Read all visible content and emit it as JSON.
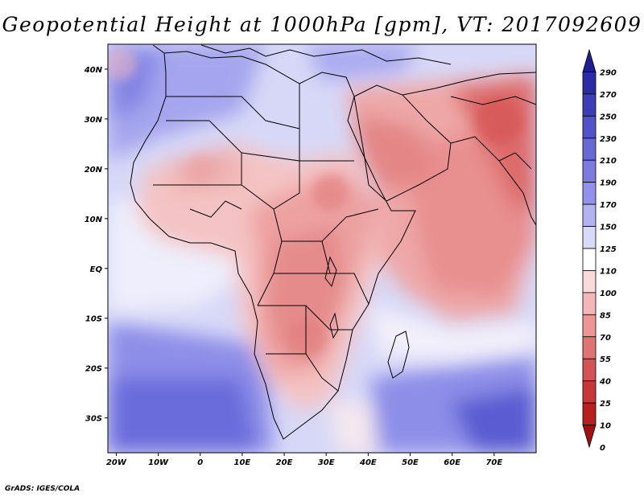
{
  "title": "Geopotential Height at 1000hPa [gpm], VT: 2017092609",
  "credit": "GrADS: IGES/COLA",
  "map": {
    "lon_range": [
      -22,
      80
    ],
    "lat_range": [
      -37,
      45
    ],
    "lon_ticks": [
      "20W",
      "10W",
      "0",
      "10E",
      "20E",
      "30E",
      "40E",
      "50E",
      "60E",
      "70E"
    ],
    "lon_tick_values": [
      -20,
      -10,
      0,
      10,
      20,
      30,
      40,
      50,
      60,
      70
    ],
    "lat_ticks": [
      "40N",
      "30N",
      "20N",
      "10N",
      "EQ",
      "10S",
      "20S",
      "30S"
    ],
    "lat_tick_values": [
      40,
      30,
      20,
      10,
      0,
      -10,
      -20,
      -30
    ]
  },
  "colorbar": {
    "labels": [
      "290",
      "270",
      "250",
      "230",
      "210",
      "190",
      "170",
      "150",
      "125",
      "110",
      "100",
      "85",
      "70",
      "55",
      "40",
      "25",
      "10",
      "0"
    ],
    "colors": [
      "#1f1e8e",
      "#2b2ba6",
      "#3c3db9",
      "#5252c9",
      "#6767d6",
      "#7b7be2",
      "#9292ec",
      "#b3b3f2",
      "#d9d9f8",
      "#ffffff",
      "#fadada",
      "#f4b7b7",
      "#ec9696",
      "#e07474",
      "#d35454",
      "#c73737",
      "#b82020",
      "#a30f0f"
    ]
  }
}
